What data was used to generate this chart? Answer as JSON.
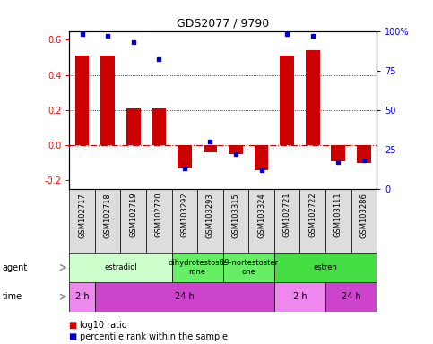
{
  "title": "GDS2077 / 9790",
  "samples": [
    "GSM102717",
    "GSM102718",
    "GSM102719",
    "GSM102720",
    "GSM103292",
    "GSM103293",
    "GSM103315",
    "GSM103324",
    "GSM102721",
    "GSM102722",
    "GSM103111",
    "GSM103286"
  ],
  "log10_ratio": [
    0.51,
    0.51,
    0.21,
    0.21,
    -0.13,
    -0.04,
    -0.05,
    -0.14,
    0.51,
    0.54,
    -0.09,
    -0.1
  ],
  "percentile": [
    98,
    97,
    93,
    82,
    13,
    30,
    22,
    12,
    98,
    97,
    17,
    18
  ],
  "ylim": [
    -0.25,
    0.65
  ],
  "yticks_left": [
    -0.2,
    0.0,
    0.2,
    0.4,
    0.6
  ],
  "yticks_right": [
    0,
    25,
    50,
    75,
    100
  ],
  "bar_color": "#cc0000",
  "dot_color": "#0000cc",
  "zero_line_color": "#cc0000",
  "agent_groups": [
    {
      "label": "estradiol",
      "start": 0,
      "end": 4,
      "color": "#ccffcc"
    },
    {
      "label": "dihydrotestoste\nrone",
      "start": 4,
      "end": 6,
      "color": "#66ee66"
    },
    {
      "label": "19-nortestoster\none",
      "start": 6,
      "end": 8,
      "color": "#66ee66"
    },
    {
      "label": "estren",
      "start": 8,
      "end": 12,
      "color": "#44dd44"
    }
  ],
  "time_groups": [
    {
      "label": "2 h",
      "start": 0,
      "end": 1,
      "color": "#ee88ee"
    },
    {
      "label": "24 h",
      "start": 1,
      "end": 8,
      "color": "#cc44cc"
    },
    {
      "label": "2 h",
      "start": 8,
      "end": 10,
      "color": "#ee88ee"
    },
    {
      "label": "24 h",
      "start": 10,
      "end": 12,
      "color": "#cc44cc"
    }
  ],
  "legend_red": "log10 ratio",
  "legend_blue": "percentile rank within the sample",
  "bar_width": 0.55,
  "label_bg": "#dddddd"
}
